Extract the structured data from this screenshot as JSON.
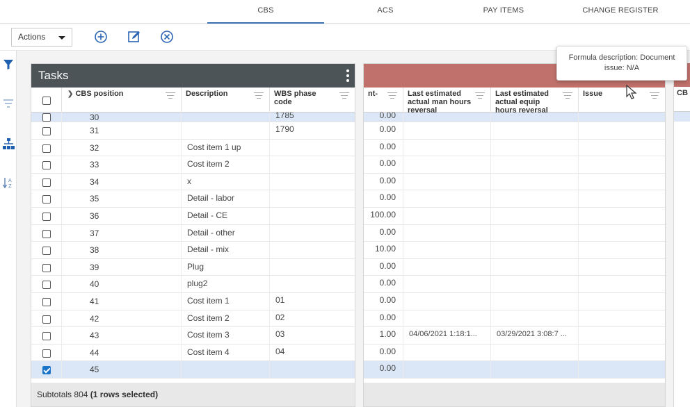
{
  "top_tabs": [
    {
      "label": "CBS",
      "active": true
    },
    {
      "label": "ACS",
      "active": false
    },
    {
      "label": "PAY ITEMS",
      "active": false
    },
    {
      "label": "CHANGE REGISTER",
      "active": false
    }
  ],
  "toolbar": {
    "actions_label": "Actions",
    "icons": [
      "add-circle-icon",
      "edit-icon",
      "cancel-circle-icon"
    ]
  },
  "left_rail_icons": [
    "filter-icon",
    "filter-lines-icon",
    "hierarchy-icon",
    "sort-az-icon"
  ],
  "tasks_panel": {
    "title": "Tasks",
    "columns": [
      "CBS position",
      "Description",
      "WBS phase code"
    ],
    "subtotals_label": "Subtotals",
    "subtotals_value": "804",
    "subtotals_selected": "(1 rows selected)"
  },
  "right_panel": {
    "columns": [
      "nt-",
      "Last estimated actual man hours reversal",
      "Last estimated actual equip hours reversal",
      "Issue",
      "CB"
    ]
  },
  "rows": [
    {
      "pos": "30",
      "desc": "",
      "wbs": "1785",
      "amount": "0.00",
      "man": "",
      "equip": "",
      "selected": false,
      "partial": true
    },
    {
      "pos": "31",
      "desc": "",
      "wbs": "1790",
      "amount": "0.00",
      "man": "",
      "equip": "",
      "selected": false
    },
    {
      "pos": "32",
      "desc": "Cost item 1 up",
      "wbs": "",
      "amount": "0.00",
      "man": "",
      "equip": "",
      "selected": false
    },
    {
      "pos": "33",
      "desc": "Cost item 2",
      "wbs": "",
      "amount": "0.00",
      "man": "",
      "equip": "",
      "selected": false
    },
    {
      "pos": "34",
      "desc": "x",
      "wbs": "",
      "amount": "0.00",
      "man": "",
      "equip": "",
      "selected": false
    },
    {
      "pos": "35",
      "desc": "Detail - labor",
      "wbs": "",
      "amount": "0.00",
      "man": "",
      "equip": "",
      "selected": false
    },
    {
      "pos": "36",
      "desc": "Detail - CE",
      "wbs": "",
      "amount": "100.00",
      "man": "",
      "equip": "",
      "selected": false
    },
    {
      "pos": "37",
      "desc": "Detail - other",
      "wbs": "",
      "amount": "0.00",
      "man": "",
      "equip": "",
      "selected": false
    },
    {
      "pos": "38",
      "desc": "Detail - mix",
      "wbs": "",
      "amount": "10.00",
      "man": "",
      "equip": "",
      "selected": false
    },
    {
      "pos": "39",
      "desc": "Plug",
      "wbs": "",
      "amount": "0.00",
      "man": "",
      "equip": "",
      "selected": false
    },
    {
      "pos": "40",
      "desc": "plug2",
      "wbs": "",
      "amount": "0.00",
      "man": "",
      "equip": "",
      "selected": false
    },
    {
      "pos": "41",
      "desc": "Cost item 1",
      "wbs": "01",
      "amount": "0.00",
      "man": "",
      "equip": "",
      "selected": false
    },
    {
      "pos": "42",
      "desc": "Cost item 2",
      "wbs": "02",
      "amount": "0.00",
      "man": "",
      "equip": "",
      "selected": false
    },
    {
      "pos": "43",
      "desc": "Cost item 3",
      "wbs": "03",
      "amount": "1.00",
      "man": "04/06/2021 1:18:1...",
      "equip": "03/29/2021 3:08:7 ...",
      "selected": false
    },
    {
      "pos": "44",
      "desc": "Cost item 4",
      "wbs": "04",
      "amount": "0.00",
      "man": "",
      "equip": "",
      "selected": false
    },
    {
      "pos": "45",
      "desc": "",
      "wbs": "",
      "amount": "0.00",
      "man": "",
      "equip": "",
      "selected": true
    }
  ],
  "tooltip": {
    "line1": "Formula description: Document",
    "line2": "issue: N/A"
  },
  "colors": {
    "tasks_header": "#4d5458",
    "right_header_band": "#c1716c",
    "selected_row": "#dbe6f6",
    "accent": "#1a73c7"
  }
}
